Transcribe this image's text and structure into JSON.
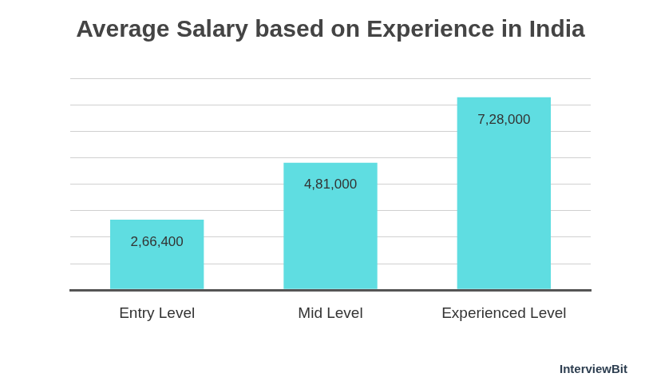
{
  "chart_data": {
    "type": "bar",
    "title": "Average Salary based on Experience in India",
    "categories": [
      "Entry Level",
      "Mid Level",
      "Experienced Level"
    ],
    "values": [
      266400,
      481000,
      728000
    ],
    "value_labels": [
      "2,66,400",
      "4,81,000",
      "7,28,000"
    ],
    "data_labels": true,
    "color": "#5fdde1",
    "ylim": [
      0,
      800000
    ],
    "yticks": [
      0,
      100000,
      200000,
      300000,
      400000,
      500000,
      600000,
      700000,
      800000
    ],
    "grid": true,
    "tick_labels": "x",
    "annotations": [
      "InterviewBit"
    ]
  }
}
